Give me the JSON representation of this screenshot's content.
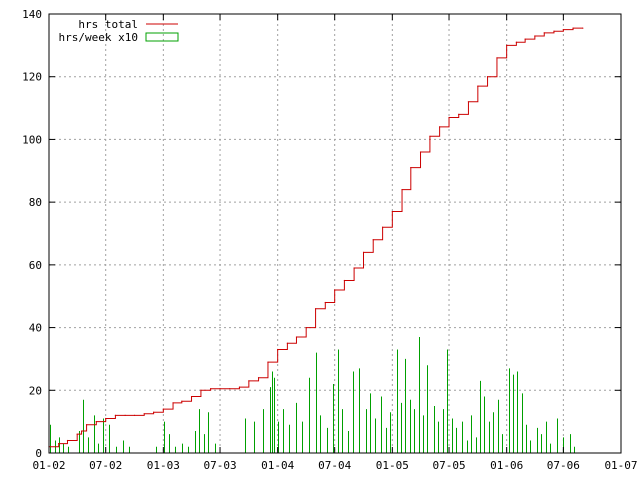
{
  "chart_data": {
    "type": "line",
    "x_tick_labels": [
      "01-02",
      "07-02",
      "01-03",
      "07-03",
      "01-04",
      "07-04",
      "01-05",
      "07-05",
      "01-06",
      "07-06",
      "01-07"
    ],
    "x_range_months": [
      "2002-01",
      "2007-01"
    ],
    "ylim": [
      0,
      140
    ],
    "y_ticks": [
      0,
      20,
      40,
      60,
      80,
      100,
      120,
      140
    ],
    "grid": true,
    "legend_placement": "top-left",
    "colors": {
      "total": "#cc0000",
      "weekly": "#00a000",
      "grid": "#a0a0a0"
    },
    "series": [
      {
        "name": "hrs total",
        "style": "step",
        "points": [
          [
            "2002-01-01",
            2
          ],
          [
            "2002-02-01",
            3
          ],
          [
            "2002-03-01",
            4
          ],
          [
            "2002-04-01",
            6
          ],
          [
            "2002-04-15",
            7
          ],
          [
            "2002-05-01",
            9
          ],
          [
            "2002-06-01",
            10
          ],
          [
            "2002-07-01",
            11
          ],
          [
            "2002-08-01",
            12
          ],
          [
            "2002-09-01",
            12
          ],
          [
            "2002-10-01",
            12
          ],
          [
            "2002-11-01",
            12.5
          ],
          [
            "2002-12-01",
            13
          ],
          [
            "2003-01-01",
            14
          ],
          [
            "2003-02-01",
            16
          ],
          [
            "2003-03-01",
            16.5
          ],
          [
            "2003-04-01",
            18
          ],
          [
            "2003-05-01",
            20
          ],
          [
            "2003-06-01",
            20.5
          ],
          [
            "2003-07-01",
            20.5
          ],
          [
            "2003-08-01",
            20.5
          ],
          [
            "2003-09-01",
            21
          ],
          [
            "2003-10-01",
            23
          ],
          [
            "2003-11-01",
            24
          ],
          [
            "2003-12-01",
            29
          ],
          [
            "2004-01-01",
            33
          ],
          [
            "2004-02-01",
            35
          ],
          [
            "2004-03-01",
            37
          ],
          [
            "2004-04-01",
            40
          ],
          [
            "2004-05-01",
            46
          ],
          [
            "2004-06-01",
            48
          ],
          [
            "2004-07-01",
            52
          ],
          [
            "2004-08-01",
            55
          ],
          [
            "2004-09-01",
            59
          ],
          [
            "2004-10-01",
            64
          ],
          [
            "2004-11-01",
            68
          ],
          [
            "2004-12-01",
            72
          ],
          [
            "2005-01-01",
            77
          ],
          [
            "2005-02-01",
            84
          ],
          [
            "2005-03-01",
            91
          ],
          [
            "2005-04-01",
            96
          ],
          [
            "2005-05-01",
            101
          ],
          [
            "2005-06-01",
            104
          ],
          [
            "2005-07-01",
            107
          ],
          [
            "2005-08-01",
            108
          ],
          [
            "2005-09-01",
            112
          ],
          [
            "2005-10-01",
            117
          ],
          [
            "2005-11-01",
            120
          ],
          [
            "2005-12-01",
            126
          ],
          [
            "2006-01-01",
            130
          ],
          [
            "2006-02-01",
            131
          ],
          [
            "2006-03-01",
            132
          ],
          [
            "2006-04-01",
            133
          ],
          [
            "2006-05-01",
            134
          ],
          [
            "2006-06-01",
            134.5
          ],
          [
            "2006-07-01",
            135
          ],
          [
            "2006-08-01",
            135.5
          ],
          [
            "2006-09-01",
            135.5
          ]
        ]
      },
      {
        "name": "hrs/week x10",
        "style": "impulse",
        "points": [
          [
            "2002-01-05",
            9
          ],
          [
            "2002-01-19",
            4
          ],
          [
            "2002-02-02",
            5
          ],
          [
            "2002-02-16",
            3
          ],
          [
            "2002-03-02",
            2
          ],
          [
            "2002-04-06",
            7
          ],
          [
            "2002-04-20",
            17
          ],
          [
            "2002-05-04",
            5
          ],
          [
            "2002-05-25",
            12
          ],
          [
            "2002-06-08",
            3
          ],
          [
            "2002-06-22",
            11
          ],
          [
            "2002-07-13",
            9
          ],
          [
            "2002-08-03",
            2
          ],
          [
            "2002-08-24",
            4
          ],
          [
            "2002-09-14",
            2
          ],
          [
            "2002-12-07",
            2
          ],
          [
            "2003-01-04",
            10
          ],
          [
            "2003-01-18",
            6
          ],
          [
            "2003-02-08",
            2
          ],
          [
            "2003-03-01",
            3
          ],
          [
            "2003-03-22",
            2
          ],
          [
            "2003-04-12",
            7
          ],
          [
            "2003-04-26",
            14
          ],
          [
            "2003-05-10",
            6
          ],
          [
            "2003-05-24",
            13
          ],
          [
            "2003-06-14",
            3
          ],
          [
            "2003-09-20",
            11
          ],
          [
            "2003-10-18",
            10
          ],
          [
            "2003-11-15",
            14
          ],
          [
            "2003-12-06",
            21
          ],
          [
            "2003-12-13",
            26
          ],
          [
            "2003-12-20",
            24
          ],
          [
            "2004-01-03",
            10
          ],
          [
            "2004-01-17",
            14
          ],
          [
            "2004-02-07",
            9
          ],
          [
            "2004-02-28",
            16
          ],
          [
            "2004-03-20",
            10
          ],
          [
            "2004-04-10",
            24
          ],
          [
            "2004-05-01",
            32
          ],
          [
            "2004-05-15",
            12
          ],
          [
            "2004-06-05",
            8
          ],
          [
            "2004-06-26",
            22
          ],
          [
            "2004-07-10",
            33
          ],
          [
            "2004-07-24",
            14
          ],
          [
            "2004-08-14",
            7
          ],
          [
            "2004-08-28",
            26
          ],
          [
            "2004-09-18",
            27
          ],
          [
            "2004-10-09",
            14
          ],
          [
            "2004-10-23",
            19
          ],
          [
            "2004-11-06",
            11
          ],
          [
            "2004-11-27",
            18
          ],
          [
            "2004-12-11",
            8
          ],
          [
            "2004-12-25",
            13
          ],
          [
            "2005-01-15",
            33
          ],
          [
            "2005-01-29",
            16
          ],
          [
            "2005-02-12",
            30
          ],
          [
            "2005-02-26",
            17
          ],
          [
            "2005-03-12",
            14
          ],
          [
            "2005-03-26",
            37
          ],
          [
            "2005-04-09",
            12
          ],
          [
            "2005-04-23",
            28
          ],
          [
            "2005-05-14",
            15
          ],
          [
            "2005-05-28",
            10
          ],
          [
            "2005-06-11",
            14
          ],
          [
            "2005-06-25",
            33
          ],
          [
            "2005-07-09",
            11
          ],
          [
            "2005-07-23",
            8
          ],
          [
            "2005-08-13",
            10
          ],
          [
            "2005-08-27",
            4
          ],
          [
            "2005-09-10",
            12
          ],
          [
            "2005-09-24",
            5
          ],
          [
            "2005-10-08",
            23
          ],
          [
            "2005-10-22",
            18
          ],
          [
            "2005-11-05",
            10
          ],
          [
            "2005-11-19",
            13
          ],
          [
            "2005-12-03",
            17
          ],
          [
            "2005-12-17",
            6
          ],
          [
            "2006-01-07",
            27
          ],
          [
            "2006-01-21",
            25
          ],
          [
            "2006-02-04",
            26
          ],
          [
            "2006-02-18",
            19
          ],
          [
            "2006-03-04",
            9
          ],
          [
            "2006-03-18",
            4
          ],
          [
            "2006-04-08",
            8
          ],
          [
            "2006-04-22",
            6
          ],
          [
            "2006-05-06",
            10
          ],
          [
            "2006-05-20",
            3
          ],
          [
            "2006-06-10",
            11
          ],
          [
            "2006-07-01",
            5
          ],
          [
            "2006-07-22",
            6
          ],
          [
            "2006-08-05",
            2
          ]
        ]
      }
    ]
  }
}
